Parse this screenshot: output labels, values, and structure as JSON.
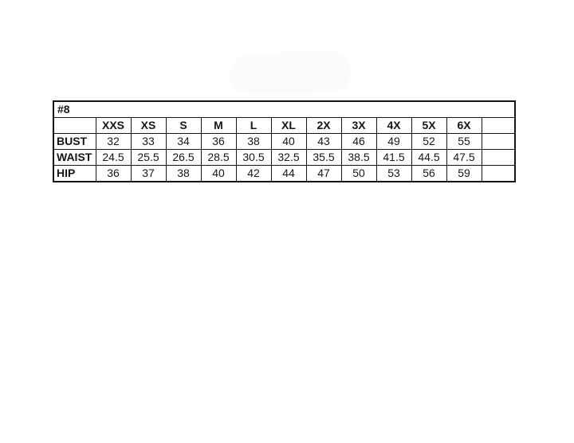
{
  "page": {
    "background": "#ffffff",
    "watermark_color": "#fbfbfb",
    "border_color": "#161616",
    "text_color": "#161616"
  },
  "chart_data": {
    "type": "table",
    "title": "#8",
    "columns": [
      "",
      "XXS",
      "XS",
      "S",
      "M",
      "L",
      "XL",
      "2X",
      "3X",
      "4X",
      "5X",
      "6X",
      ""
    ],
    "rows": [
      {
        "label": "BUST",
        "values": [
          "32",
          "33",
          "34",
          "36",
          "38",
          "40",
          "43",
          "46",
          "49",
          "52",
          "55"
        ],
        "trailing": ""
      },
      {
        "label": "WAIST",
        "values": [
          "24.5",
          "25.5",
          "26.5",
          "28.5",
          "30.5",
          "32.5",
          "35.5",
          "38.5",
          "41.5",
          "44.5",
          "47.5"
        ],
        "trailing": ""
      },
      {
        "label": "HIP",
        "values": [
          "36",
          "37",
          "38",
          "40",
          "42",
          "44",
          "47",
          "50",
          "53",
          "56",
          "59"
        ],
        "trailing": ""
      }
    ],
    "layout_hints": {
      "title_row_merged": true,
      "grid": "on",
      "header_bold": true,
      "labels_bold": true
    }
  }
}
